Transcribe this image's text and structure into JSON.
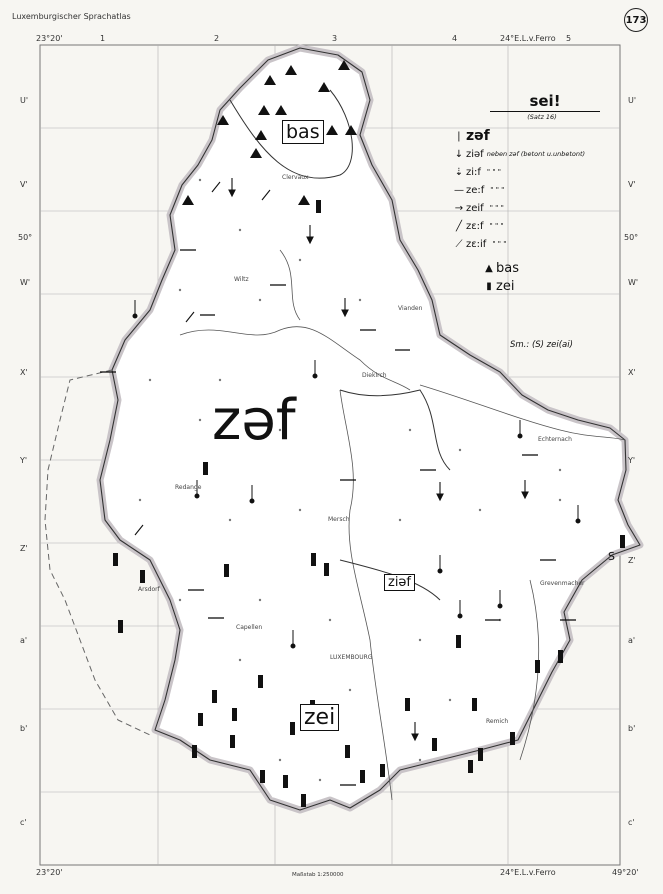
{
  "header": {
    "atlas_title": "Luxemburgischer Sprachatlas",
    "page_number": "173"
  },
  "legend": {
    "title": "sei!",
    "subtitle": "(Satz 16)",
    "entries": [
      {
        "symbol_name": "vertical-bar-icon",
        "form": "zəf",
        "note": ""
      },
      {
        "symbol_name": "down-arrow-icon",
        "form": "ziəf",
        "note": "neben zəf (betont u.unbetont)"
      },
      {
        "symbol_name": "down-arrow-open-icon",
        "form": "zi:f",
        "note": "\"   \"   \""
      },
      {
        "symbol_name": "dash-icon",
        "form": "ze:f",
        "note": "\"   \"   \""
      },
      {
        "symbol_name": "dash-arrow-icon",
        "form": "zeif",
        "note": "\"   \"   \""
      },
      {
        "symbol_name": "slash-icon",
        "form": "zɛ:f",
        "note": "\"   \"   \""
      },
      {
        "symbol_name": "slash-dot-icon",
        "form": "zɛ:if",
        "note": "\"   \"   \""
      }
    ],
    "area_symbols": [
      {
        "symbol_name": "triangle-icon",
        "form": "bas"
      },
      {
        "symbol_name": "filled-bar-icon",
        "form": "zei"
      }
    ],
    "sm_note": "Sm.: (S) zei(ai)"
  },
  "map_labels": {
    "main_form": "zəf",
    "north_area": "bas",
    "east_area": "ziəf",
    "south_area": "zei",
    "letter_s": "S"
  },
  "places": [
    "Clervaux",
    "Wiltz",
    "Vianden",
    "Diekirch",
    "Echternach",
    "Redange",
    "Mersch",
    "Capellen",
    "LUXEMBOURG",
    "Grevenmacher",
    "Remich",
    "Arsdorf"
  ],
  "grid": {
    "top_columns": [
      "1",
      "2",
      "3",
      "4",
      "5"
    ],
    "left_rows": [
      "U'",
      "V'",
      "W'",
      "X'",
      "Y'",
      "Z'",
      "a'",
      "b'",
      "c'"
    ],
    "right_rows": [
      "U'",
      "V'",
      "W'",
      "X'",
      "Y'",
      "Z'",
      "a'",
      "b'",
      "c'"
    ],
    "coord_top_left": "23°20'",
    "coord_top_right": "24°E.L.v.Ferro",
    "coord_bottom_left": "23°20'",
    "coord_bottom_right": "24°E.L.v.Ferro",
    "lat_top": "50°",
    "lat_bottom": "49°20'",
    "scale_text": "Maßstab 1:250000"
  },
  "colors": {
    "paper": "#f7f6f2",
    "border_band": "#c9c4c8",
    "ink": "#111111",
    "grid": "#9a9a9a"
  }
}
